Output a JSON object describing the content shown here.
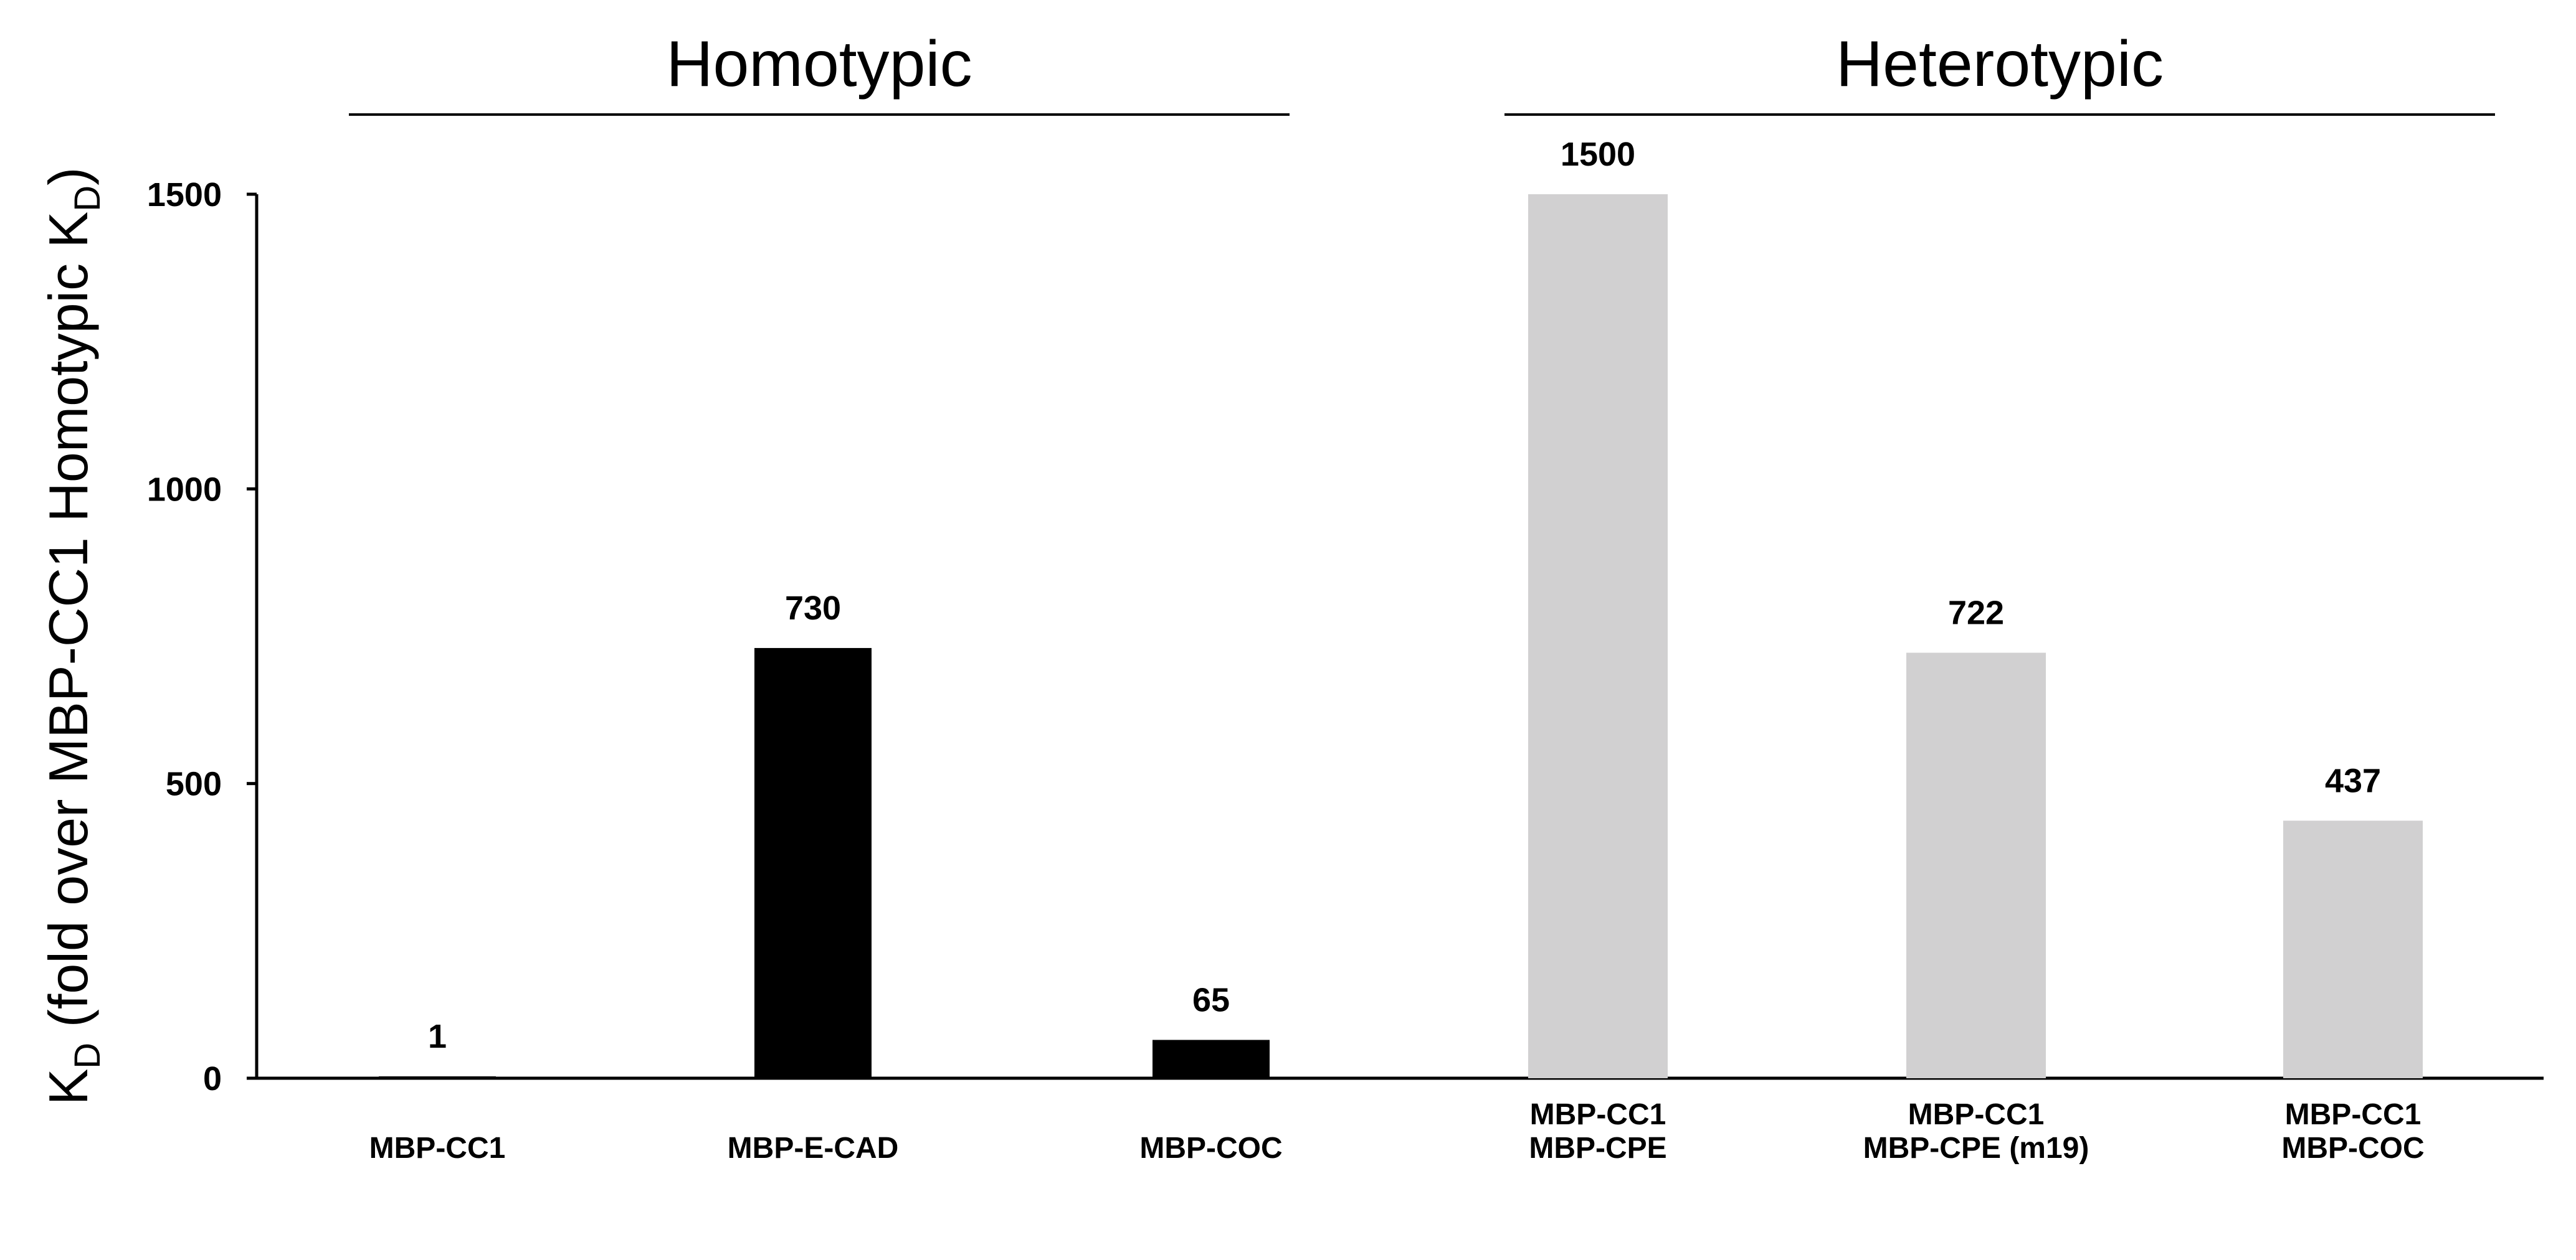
{
  "chart_data": {
    "type": "bar",
    "groups": [
      {
        "title": "Homotypic",
        "color": "#000000",
        "categories": [
          0,
          1,
          2
        ]
      },
      {
        "title": "Heterotypic",
        "color": "#d1d0d1",
        "categories": [
          3,
          4,
          5
        ]
      }
    ],
    "categories": [
      [
        "MBP-CC1"
      ],
      [
        "MBP-E-CAD"
      ],
      [
        "MBP-COC"
      ],
      [
        "MBP-CC1",
        "MBP-CPE"
      ],
      [
        "MBP-CC1",
        "MBP-CPE (m19)"
      ],
      [
        "MBP-CC1",
        "MBP-COC"
      ]
    ],
    "values": [
      1,
      730,
      65,
      1500,
      722,
      437
    ],
    "data_labels": [
      "1",
      "730",
      "65",
      "1500",
      "722",
      "437"
    ],
    "ylabel": {
      "main": "K",
      "sub1": "D",
      "mid": " (fold over MBP-CC1 Homotypic K",
      "sub2": "D",
      "end": ")"
    },
    "yticks": [
      0,
      500,
      1000,
      1500
    ],
    "ylim": [
      0,
      1500
    ],
    "grid": false
  }
}
